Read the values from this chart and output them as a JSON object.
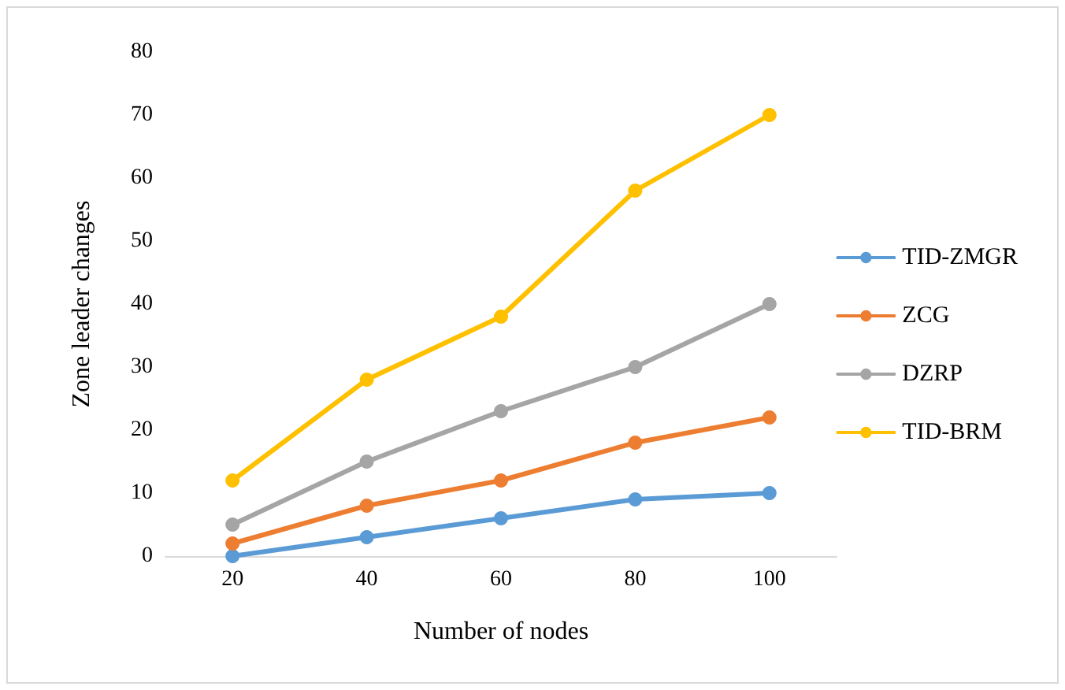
{
  "chart_data": {
    "type": "line",
    "xlabel": "Number of nodes",
    "ylabel": "Zone leader changes",
    "categories": [
      "20",
      "40",
      "60",
      "80",
      "100"
    ],
    "series": [
      {
        "name": "TID-ZMGR",
        "color": "#5b9bd5",
        "values": [
          0,
          3,
          6,
          9,
          10
        ]
      },
      {
        "name": "ZCG",
        "color": "#ed7d31",
        "values": [
          2,
          8,
          12,
          18,
          22
        ]
      },
      {
        "name": "DZRP",
        "color": "#a5a5a5",
        "values": [
          5,
          15,
          23,
          30,
          40
        ]
      },
      {
        "name": "TID-BRM",
        "color": "#ffc000",
        "values": [
          12,
          28,
          38,
          58,
          70
        ]
      }
    ],
    "ylim": [
      0,
      80
    ],
    "yticks": [
      0,
      10,
      20,
      30,
      40,
      50,
      60,
      70,
      80
    ],
    "grid": false,
    "legend": "right",
    "marker": "circle",
    "line_style": "solid"
  }
}
